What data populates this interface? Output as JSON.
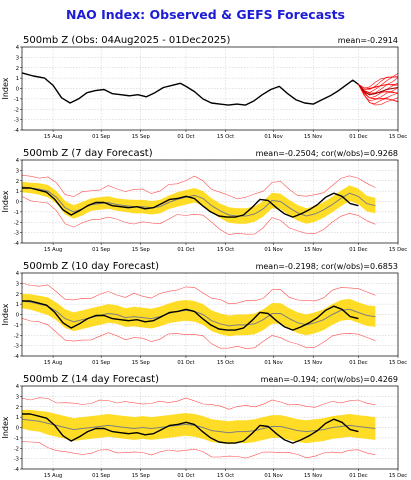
{
  "title": "NAO Index: Observed & GEFS Forecasts",
  "x_ticks": [
    "15 Aug",
    "01 Sep",
    "15 Sep",
    "01 Oct",
    "15 Oct",
    "01 Nov",
    "15 Nov",
    "01 Dec",
    "15 Dec"
  ],
  "y_ticks": [
    "4",
    "3",
    "2",
    "1",
    "0",
    "-1",
    "-2",
    "-3",
    "-4"
  ],
  "ylabel": "Index",
  "colors": {
    "title": "#1c1cd6",
    "observed": "#000000",
    "ensemble_mean": "#7f7f7f",
    "forecast_members": "#ff0000",
    "spread_band": "#ffd700",
    "spread_envelope": "#ff5050",
    "grid": "#c8c8c8"
  },
  "chart_data": [
    {
      "type": "line",
      "title": "500mb Z (Obs: 04Aug2025 - 01Dec2025)",
      "stat": "mean=-0.2914",
      "ylim": [
        -4,
        4
      ],
      "x_range": [
        "2025-08-04",
        "2025-12-15"
      ],
      "grid": true,
      "series": [
        {
          "values": [
            {
              "x": "2025-08-04",
              "y": 1.5
            },
            {
              "x": "2025-08-08",
              "y": 1.2
            },
            {
              "x": "2025-08-12",
              "y": 1.0
            },
            {
              "x": "2025-08-15",
              "y": 0.3
            },
            {
              "x": "2025-08-18",
              "y": -0.9
            },
            {
              "x": "2025-08-21",
              "y": -1.4
            },
            {
              "x": "2025-08-24",
              "y": -1.0
            },
            {
              "x": "2025-08-27",
              "y": -0.4
            },
            {
              "x": "2025-08-30",
              "y": -0.2
            },
            {
              "x": "2025-09-02",
              "y": -0.1
            },
            {
              "x": "2025-09-05",
              "y": -0.5
            },
            {
              "x": "2025-09-08",
              "y": -0.6
            },
            {
              "x": "2025-09-11",
              "y": -0.7
            },
            {
              "x": "2025-09-14",
              "y": -0.6
            },
            {
              "x": "2025-09-17",
              "y": -0.8
            },
            {
              "x": "2025-09-20",
              "y": -0.4
            },
            {
              "x": "2025-09-23",
              "y": 0.1
            },
            {
              "x": "2025-09-26",
              "y": 0.3
            },
            {
              "x": "2025-09-29",
              "y": 0.5
            },
            {
              "x": "2025-10-01",
              "y": 0.2
            },
            {
              "x": "2025-10-04",
              "y": -0.3
            },
            {
              "x": "2025-10-07",
              "y": -1.0
            },
            {
              "x": "2025-10-10",
              "y": -1.4
            },
            {
              "x": "2025-10-13",
              "y": -1.5
            },
            {
              "x": "2025-10-16",
              "y": -1.6
            },
            {
              "x": "2025-10-19",
              "y": -1.5
            },
            {
              "x": "2025-10-22",
              "y": -1.6
            },
            {
              "x": "2025-10-25",
              "y": -1.2
            },
            {
              "x": "2025-10-28",
              "y": -0.6
            },
            {
              "x": "2025-10-31",
              "y": -0.1
            },
            {
              "x": "2025-11-03",
              "y": 0.2
            },
            {
              "x": "2025-11-06",
              "y": -0.5
            },
            {
              "x": "2025-11-09",
              "y": -1.1
            },
            {
              "x": "2025-11-12",
              "y": -1.4
            },
            {
              "x": "2025-11-15",
              "y": -1.5
            },
            {
              "x": "2025-11-18",
              "y": -1.1
            },
            {
              "x": "2025-11-21",
              "y": -0.7
            },
            {
              "x": "2025-11-24",
              "y": -0.2
            },
            {
              "x": "2025-11-27",
              "y": 0.4
            },
            {
              "x": "2025-11-29",
              "y": 0.8
            },
            {
              "x": "2025-12-01",
              "y": 0.4
            }
          ]
        }
      ],
      "forecast_members": {
        "start": "2025-12-01",
        "end": "2025-12-15",
        "center": [
          0.4,
          -0.3,
          -0.6,
          -0.5,
          -0.3,
          -0.1,
          0.0,
          0.1
        ],
        "spread": [
          0.0,
          0.4,
          0.8,
          1.0,
          1.1,
          1.2,
          1.3,
          1.4
        ]
      }
    },
    {
      "type": "line",
      "title": "500mb Z (7 day Forecast)",
      "stat": "mean=-0.2504; cor(w/obs)=0.9268",
      "ylim": [
        -4,
        4
      ],
      "x_range": [
        "2025-08-04",
        "2025-12-15"
      ],
      "grid": true,
      "series": [
        {
          "values": [
            1.4,
            1.3,
            1.2,
            1.0,
            0.4,
            -0.6,
            -1.0,
            -0.7,
            -0.3,
            -0.2,
            -0.1,
            -0.3,
            -0.4,
            -0.5,
            -0.5,
            -0.6,
            -0.5,
            -0.1,
            0.2,
            0.4,
            0.6,
            0.3,
            -0.4,
            -0.9,
            -1.3,
            -1.4,
            -1.4,
            -1.2,
            -0.7,
            0.1,
            0.0,
            -0.6,
            -1.1,
            -1.4,
            -1.2,
            -0.8,
            -0.3,
            0.3,
            0.8,
            0.5,
            -0.2,
            -0.4
          ]
        },
        {
          "values": [
            1.3,
            1.3,
            1.1,
            0.9,
            0.2,
            -0.8,
            -1.3,
            -0.9,
            -0.4,
            -0.1,
            -0.1,
            -0.4,
            -0.5,
            -0.6,
            -0.5,
            -0.7,
            -0.6,
            -0.2,
            0.2,
            0.3,
            0.5,
            0.3,
            -0.4,
            -1.0,
            -1.4,
            -1.5,
            -1.5,
            -1.3,
            -0.6,
            0.2,
            0.1,
            -0.6,
            -1.2,
            -1.5,
            -1.2,
            -0.8,
            -0.3,
            0.4,
            0.8,
            0.5,
            -0.2,
            -0.4
          ]
        }
      ],
      "spread": [
        0.5,
        0.5,
        0.55,
        0.6,
        0.6,
        0.65,
        0.65,
        0.65,
        0.6,
        0.6,
        0.6,
        0.6,
        0.6,
        0.65,
        0.65,
        0.65,
        0.65,
        0.65,
        0.7,
        0.7,
        0.7,
        0.7,
        0.7,
        0.7,
        0.75,
        0.75,
        0.75,
        0.75,
        0.75,
        0.75,
        0.75,
        0.75,
        0.75,
        0.75,
        0.75,
        0.75,
        0.75,
        0.75,
        0.75,
        0.75,
        0.75,
        0.75
      ],
      "envelope": [
        1.0,
        1.1,
        1.2,
        1.3,
        1.3,
        1.4,
        1.5,
        1.5,
        1.4,
        1.4,
        1.5,
        1.5,
        1.5,
        1.6,
        1.6,
        1.5,
        1.5,
        1.6,
        1.6,
        1.7,
        1.7,
        1.7,
        1.7,
        1.7,
        1.8,
        1.8,
        1.8,
        1.8,
        1.8,
        1.8,
        1.8,
        1.8,
        1.8,
        1.8,
        1.8,
        1.8,
        1.8,
        1.8,
        1.8,
        1.8,
        1.8,
        1.8
      ]
    },
    {
      "type": "line",
      "title": "500mb Z (10 day Forecast)",
      "stat": "mean=-0.2198; cor(w/obs)=0.6853",
      "ylim": [
        -4,
        4
      ],
      "x_range": [
        "2025-08-04",
        "2025-12-15"
      ],
      "grid": true,
      "series": [
        {
          "values": [
            1.3,
            1.2,
            1.0,
            0.8,
            0.3,
            -0.4,
            -0.7,
            -0.5,
            -0.3,
            -0.1,
            0.1,
            0.0,
            -0.3,
            -0.2,
            -0.3,
            -0.4,
            -0.2,
            0.1,
            0.3,
            0.4,
            0.3,
            0.0,
            -0.6,
            -0.9,
            -1.1,
            -1.0,
            -1.0,
            -0.9,
            -0.5,
            0.1,
            0.1,
            -0.4,
            -0.8,
            -1.0,
            -0.8,
            -0.5,
            0.0,
            0.4,
            0.5,
            0.2,
            -0.1,
            -0.2
          ]
        },
        {
          "values": [
            1.3,
            1.3,
            1.1,
            0.9,
            0.2,
            -0.8,
            -1.3,
            -0.9,
            -0.4,
            -0.1,
            -0.1,
            -0.4,
            -0.5,
            -0.6,
            -0.5,
            -0.7,
            -0.6,
            -0.2,
            0.2,
            0.3,
            0.5,
            0.3,
            -0.4,
            -1.0,
            -1.4,
            -1.5,
            -1.5,
            -1.3,
            -0.6,
            0.2,
            0.1,
            -0.6,
            -1.2,
            -1.5,
            -1.2,
            -0.8,
            -0.3,
            0.4,
            0.8,
            0.5,
            -0.2,
            -0.4
          ]
        }
      ],
      "spread": [
        0.7,
        0.75,
        0.8,
        0.85,
        0.85,
        0.9,
        0.9,
        0.9,
        0.9,
        0.9,
        0.9,
        0.9,
        0.9,
        0.95,
        0.95,
        0.95,
        0.95,
        0.95,
        1.0,
        1.0,
        1.0,
        1.0,
        1.0,
        1.0,
        1.0,
        1.0,
        1.0,
        1.0,
        1.0,
        1.0,
        1.0,
        1.0,
        1.0,
        1.0,
        1.0,
        1.0,
        1.0,
        1.0,
        1.0,
        1.0,
        1.0,
        1.0
      ],
      "envelope": [
        1.6,
        1.7,
        1.8,
        1.9,
        1.9,
        2.0,
        2.0,
        2.0,
        2.0,
        2.0,
        2.0,
        2.0,
        2.0,
        2.1,
        2.1,
        2.1,
        2.1,
        2.1,
        2.2,
        2.2,
        2.2,
        2.2,
        2.2,
        2.2,
        2.2,
        2.2,
        2.2,
        2.2,
        2.2,
        2.2,
        2.2,
        2.2,
        2.2,
        2.2,
        2.2,
        2.2,
        2.2,
        2.2,
        2.2,
        2.2,
        2.2,
        2.2
      ]
    },
    {
      "type": "line",
      "title": "500mb Z (14 day Forecast)",
      "stat": "mean=-0.194; cor(w/obs)=0.4269",
      "ylim": [
        -4,
        4
      ],
      "x_range": [
        "2025-08-04",
        "2025-12-15"
      ],
      "grid": true,
      "series": [
        {
          "values": [
            0.8,
            0.7,
            0.6,
            0.4,
            0.2,
            0.0,
            -0.2,
            -0.1,
            0.0,
            0.1,
            0.2,
            0.1,
            0.0,
            -0.1,
            0.0,
            -0.1,
            0.0,
            0.1,
            0.2,
            0.3,
            0.2,
            0.0,
            -0.3,
            -0.4,
            -0.5,
            -0.4,
            -0.4,
            -0.3,
            -0.1,
            0.1,
            0.1,
            -0.1,
            -0.3,
            -0.4,
            -0.3,
            -0.2,
            0.0,
            0.1,
            0.2,
            0.1,
            0.0,
            -0.1
          ]
        },
        {
          "values": [
            1.3,
            1.3,
            1.1,
            0.9,
            0.2,
            -0.8,
            -1.3,
            -0.9,
            -0.4,
            -0.1,
            -0.1,
            -0.4,
            -0.5,
            -0.6,
            -0.5,
            -0.7,
            -0.6,
            -0.2,
            0.2,
            0.3,
            0.5,
            0.3,
            -0.4,
            -1.0,
            -1.4,
            -1.5,
            -1.5,
            -1.3,
            -0.6,
            0.2,
            0.1,
            -0.6,
            -1.2,
            -1.5,
            -1.2,
            -0.8,
            -0.3,
            0.4,
            0.8,
            0.5,
            -0.2,
            -0.4
          ]
        }
      ],
      "spread": [
        0.9,
        1.0,
        1.0,
        1.1,
        1.1,
        1.1,
        1.1,
        1.1,
        1.1,
        1.1,
        1.1,
        1.1,
        1.1,
        1.1,
        1.1,
        1.1,
        1.1,
        1.1,
        1.1,
        1.1,
        1.1,
        1.1,
        1.1,
        1.1,
        1.1,
        1.1,
        1.1,
        1.1,
        1.1,
        1.1,
        1.1,
        1.1,
        1.1,
        1.1,
        1.1,
        1.1,
        1.1,
        1.1,
        1.1,
        1.1,
        1.1,
        1.1
      ],
      "envelope": [
        2.0,
        2.1,
        2.2,
        2.3,
        2.3,
        2.4,
        2.4,
        2.4,
        2.4,
        2.4,
        2.4,
        2.4,
        2.4,
        2.4,
        2.4,
        2.4,
        2.4,
        2.4,
        2.4,
        2.4,
        2.4,
        2.4,
        2.4,
        2.4,
        2.4,
        2.4,
        2.4,
        2.4,
        2.4,
        2.4,
        2.4,
        2.4,
        2.4,
        2.4,
        2.4,
        2.4,
        2.4,
        2.4,
        2.4,
        2.4,
        2.4,
        2.4
      ]
    }
  ]
}
